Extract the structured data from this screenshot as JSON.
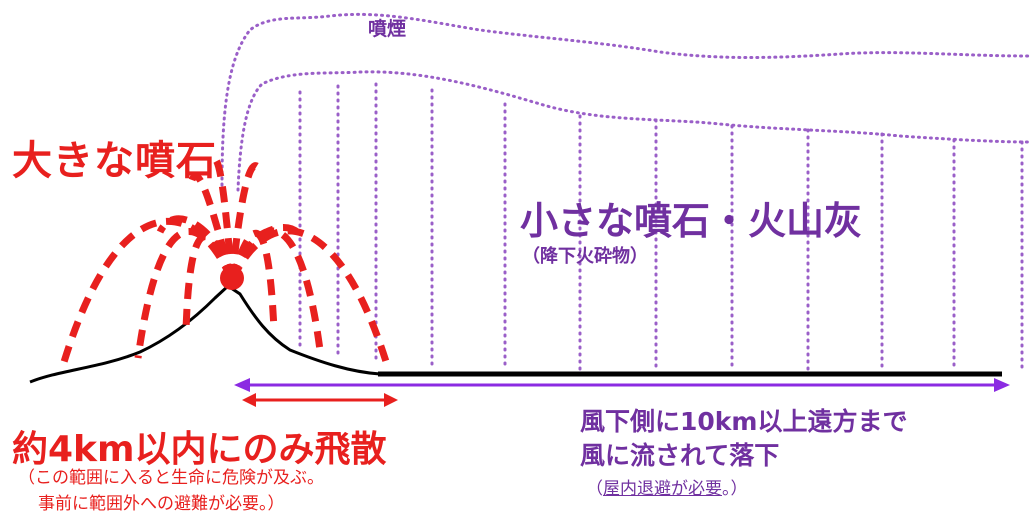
{
  "labels": {
    "plume": "噴煙",
    "large_bombs": "大きな噴石",
    "small_bombs": "小さな噴石・火山灰",
    "small_bombs_sub": "（降下火砕物）",
    "range_title": "約4km以内にのみ飛散",
    "range_note_1": "（この範囲に入ると生命に危険が及ぶ。",
    "range_note_2": "事前に範囲外への避難が必要。）",
    "downwind_1": "風下側に10km以上遠方まで",
    "downwind_2": "風に流されて落下",
    "downwind_note_open": "（",
    "downwind_note_underlined": "屋内退避が必要",
    "downwind_note_close": "。）"
  },
  "colors": {
    "red": "#e8201e",
    "purple": "#7030a0",
    "plume_dots": "#9a5fc8",
    "ground": "#000000"
  }
}
